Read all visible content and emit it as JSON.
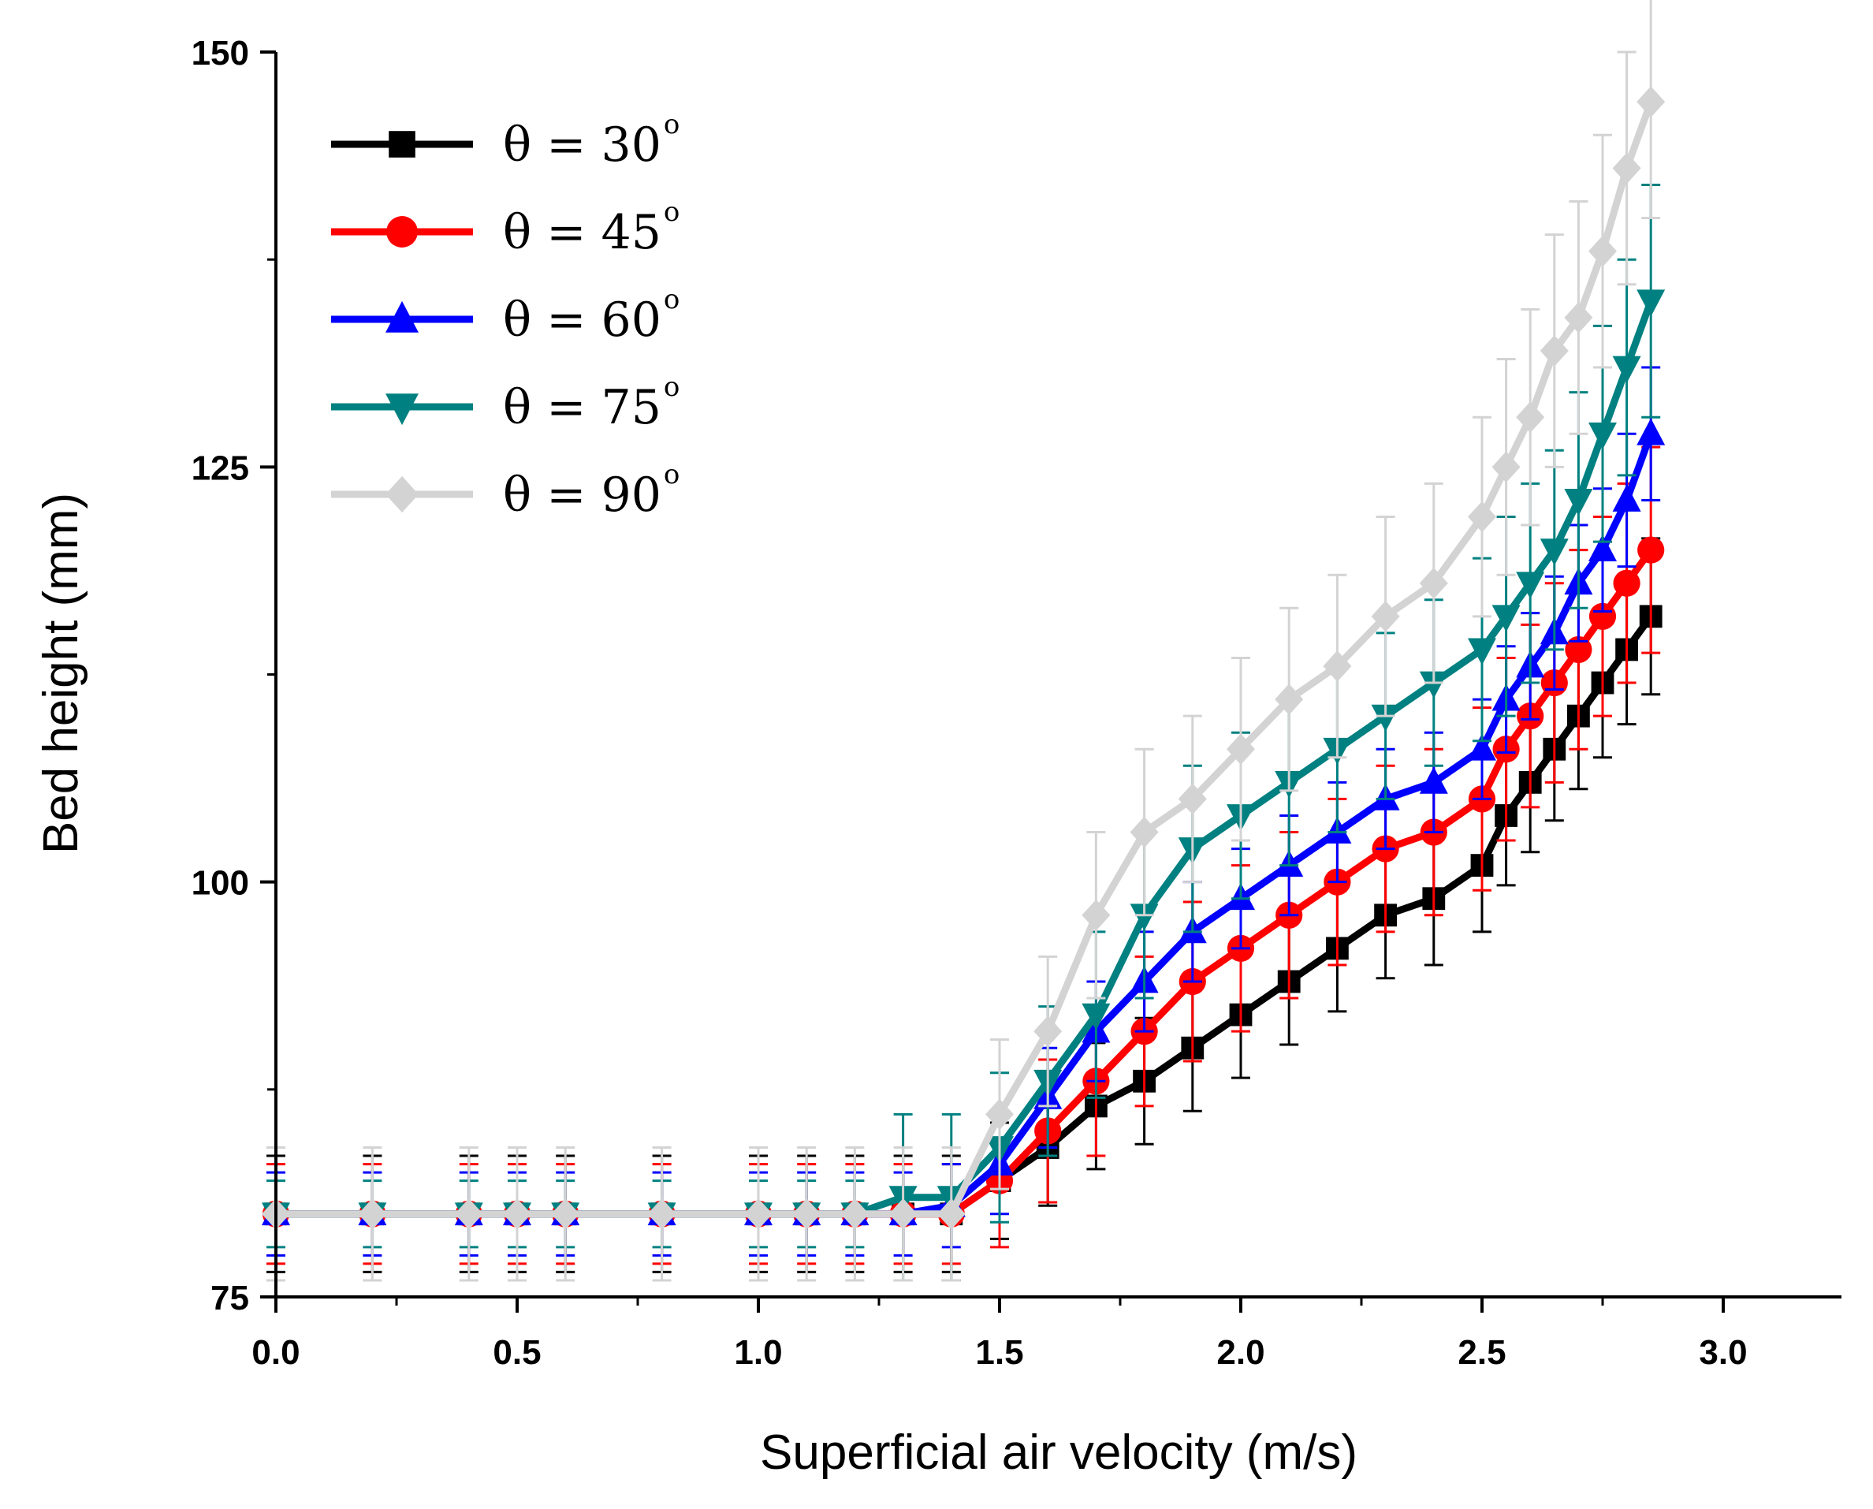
{
  "chart_data": {
    "type": "line",
    "title": "",
    "xlabel": "Superficial air velocity (m/s)",
    "ylabel": "Bed height (mm)",
    "xlim": [
      0,
      3.25
    ],
    "ylim": [
      75,
      150
    ],
    "x_ticks": [
      0.0,
      0.5,
      1.0,
      1.5,
      2.0,
      2.5,
      3.0
    ],
    "x_tick_labels": [
      "0.0",
      "0.5",
      "1.0",
      "1.5",
      "2.0",
      "2.5",
      "3.0"
    ],
    "y_ticks": [
      75,
      100,
      125,
      150
    ],
    "y_tick_labels": [
      "75",
      "100",
      "125",
      "150"
    ],
    "legend_position": "top-left",
    "series": [
      {
        "name": "θ = 30°",
        "label_main": "θ = 30",
        "label_sup": "o",
        "color": "#000000",
        "marker": "square",
        "x": [
          0,
          0.2,
          0.4,
          0.5,
          0.6,
          0.8,
          1.0,
          1.1,
          1.2,
          1.3,
          1.4,
          1.5,
          1.6,
          1.7,
          1.8,
          1.9,
          2.0,
          2.1,
          2.2,
          2.3,
          2.4,
          2.5,
          2.55,
          2.6,
          2.65,
          2.7,
          2.75,
          2.8,
          2.85
        ],
        "y": [
          80,
          80,
          80,
          80,
          80,
          80,
          80,
          80,
          80,
          80,
          80,
          82,
          84,
          86.5,
          88,
          90,
          92,
          94,
          96,
          98,
          99,
          101,
          104,
          106,
          108,
          110,
          112,
          114,
          116
        ],
        "err": [
          3.5,
          3.5,
          3.5,
          3.5,
          3.5,
          3.5,
          3.5,
          3.5,
          3.5,
          3.5,
          3.5,
          3.5,
          3.5,
          3.8,
          3.8,
          3.8,
          3.8,
          3.8,
          3.8,
          3.8,
          4,
          4,
          4.2,
          4.2,
          4.3,
          4.4,
          4.5,
          4.5,
          4.7
        ]
      },
      {
        "name": "θ = 45°",
        "label_main": "θ = 45",
        "label_sup": "o",
        "color": "#ff0000",
        "marker": "circle",
        "x": [
          0,
          0.2,
          0.4,
          0.5,
          0.6,
          0.8,
          1.0,
          1.1,
          1.2,
          1.3,
          1.4,
          1.5,
          1.6,
          1.7,
          1.8,
          1.9,
          2.0,
          2.1,
          2.2,
          2.3,
          2.4,
          2.5,
          2.55,
          2.6,
          2.65,
          2.7,
          2.75,
          2.8,
          2.85
        ],
        "y": [
          80,
          80,
          80,
          80,
          80,
          80,
          80,
          80,
          80,
          80,
          80,
          82,
          85,
          88,
          91,
          94,
          96,
          98,
          100,
          102,
          103,
          105,
          108,
          110,
          112,
          114,
          116,
          118,
          120
        ],
        "err": [
          3,
          3,
          3,
          3,
          3,
          3,
          3,
          3,
          3,
          3,
          3,
          4,
          4.3,
          4.5,
          4.5,
          4.8,
          5,
          5,
          5,
          5,
          5,
          5.5,
          5.5,
          5.5,
          6,
          6,
          6,
          6,
          6.2
        ]
      },
      {
        "name": "θ = 60°",
        "label_main": "θ = 60",
        "label_sup": "o",
        "color": "#0000ff",
        "marker": "triangle-up",
        "x": [
          0,
          0.2,
          0.4,
          0.5,
          0.6,
          0.8,
          1.0,
          1.1,
          1.2,
          1.3,
          1.4,
          1.5,
          1.6,
          1.7,
          1.8,
          1.9,
          2.0,
          2.1,
          2.2,
          2.3,
          2.4,
          2.5,
          2.55,
          2.6,
          2.65,
          2.7,
          2.75,
          2.8,
          2.85
        ],
        "y": [
          80,
          80,
          80,
          80,
          80,
          80,
          80,
          80,
          80,
          80,
          80.5,
          83,
          87,
          91,
          94,
          97,
          99,
          101,
          103,
          105,
          106,
          108,
          111,
          113,
          115,
          118,
          120,
          123,
          127
        ],
        "err": [
          2.5,
          2.5,
          2.5,
          2.5,
          2.5,
          2.5,
          2.5,
          2.5,
          2.5,
          2.5,
          2.5,
          3,
          3,
          3,
          3,
          3,
          3,
          3,
          3,
          3,
          3,
          3,
          3.2,
          3.2,
          3.4,
          3.5,
          3.7,
          4,
          4
        ]
      },
      {
        "name": "θ = 75°",
        "label_main": "θ = 75",
        "label_sup": "o",
        "color": "#008080",
        "marker": "triangle-down",
        "x": [
          0,
          0.2,
          0.4,
          0.5,
          0.6,
          0.8,
          1.0,
          1.1,
          1.2,
          1.3,
          1.4,
          1.5,
          1.6,
          1.7,
          1.8,
          1.9,
          2.0,
          2.1,
          2.2,
          2.3,
          2.4,
          2.5,
          2.55,
          2.6,
          2.65,
          2.7,
          2.75,
          2.8,
          2.85
        ],
        "y": [
          80,
          80,
          80,
          80,
          80,
          80,
          80,
          80,
          80,
          81,
          81,
          84,
          88,
          92,
          98,
          102,
          104,
          106,
          108,
          110,
          112,
          114,
          116,
          118,
          120,
          123,
          127,
          131,
          135
        ],
        "err": [
          2,
          2,
          2,
          2,
          2,
          2,
          2,
          2,
          2,
          5,
          5,
          4.5,
          4.5,
          5,
          5,
          5,
          5,
          5,
          5,
          5,
          5,
          5.5,
          6,
          6,
          6,
          6.5,
          6.5,
          6.5,
          7
        ]
      },
      {
        "name": "θ = 90°",
        "label_main": "θ = 90",
        "label_sup": "o",
        "color": "#d3d3d3",
        "marker": "diamond",
        "x": [
          0,
          0.2,
          0.4,
          0.5,
          0.6,
          0.8,
          1.0,
          1.1,
          1.2,
          1.3,
          1.4,
          1.5,
          1.6,
          1.7,
          1.8,
          1.9,
          2.0,
          2.1,
          2.2,
          2.3,
          2.4,
          2.5,
          2.55,
          2.6,
          2.65,
          2.7,
          2.75,
          2.8,
          2.85
        ],
        "y": [
          80,
          80,
          80,
          80,
          80,
          80,
          80,
          80,
          80,
          80,
          80,
          86,
          91,
          98,
          103,
          105,
          108,
          111,
          113,
          116,
          118,
          122,
          125,
          128,
          132,
          134,
          138,
          143,
          147
        ],
        "err": [
          4,
          4,
          4,
          4,
          4,
          4,
          4,
          4,
          4,
          4,
          4,
          4.5,
          4.5,
          5,
          5,
          5,
          5.5,
          5.5,
          5.5,
          6,
          6,
          6,
          6.5,
          6.5,
          7,
          7,
          7,
          7,
          7
        ]
      }
    ]
  }
}
